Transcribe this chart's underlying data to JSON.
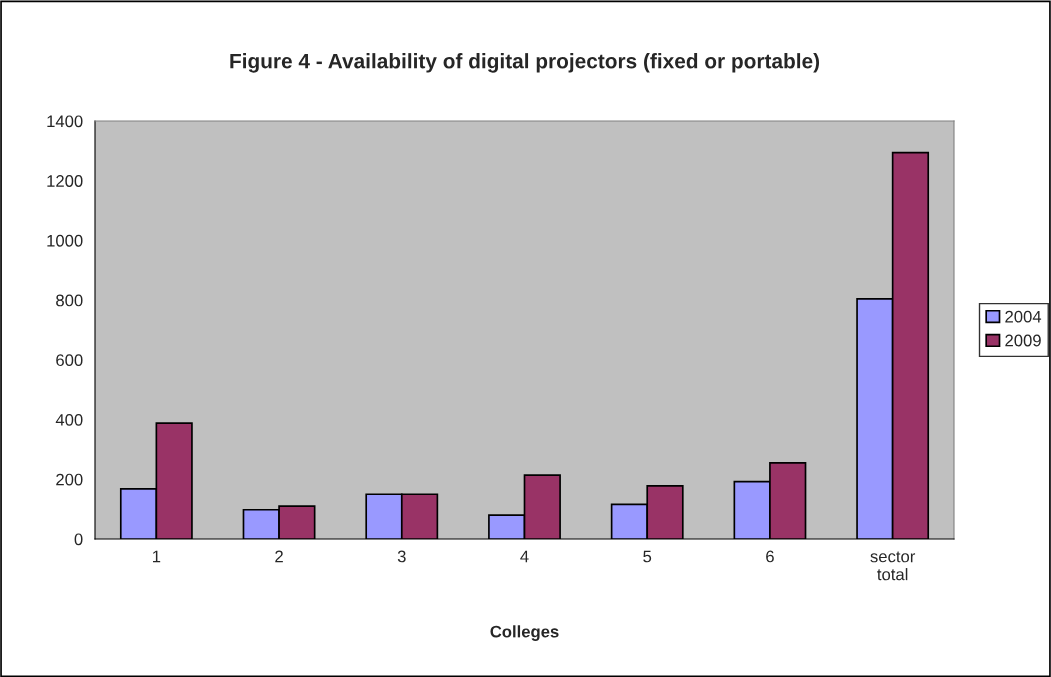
{
  "chart_data": {
    "type": "bar",
    "title": "Figure 4 - Availability of digital projectors (fixed or portable)",
    "xlabel": "Colleges",
    "categories": [
      "1",
      "2",
      "3",
      "4",
      "5",
      "6",
      "sector\ntotal"
    ],
    "series": [
      {
        "name": "2004",
        "color": "#9999ff",
        "values": [
          168,
          98,
          150,
          80,
          116,
          192,
          804
        ]
      },
      {
        "name": "2009",
        "color": "#993366",
        "values": [
          388,
          110,
          150,
          214,
          178,
          255,
          1294
        ]
      }
    ],
    "ylim": [
      0,
      1400
    ],
    "yticks": [
      0,
      200,
      400,
      600,
      800,
      1000,
      1200,
      1400
    ],
    "grid": false,
    "legend": "right"
  }
}
